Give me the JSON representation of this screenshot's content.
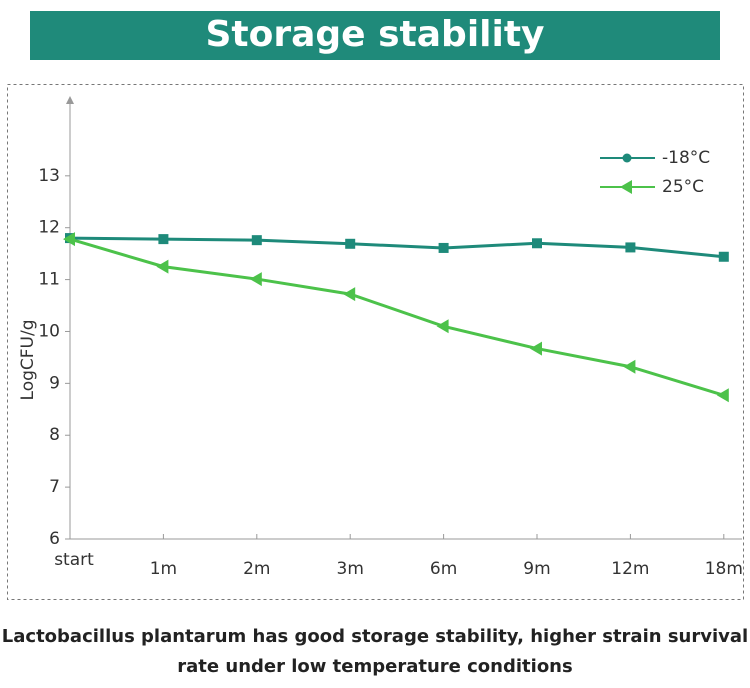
{
  "chart_data": {
    "type": "line",
    "title": "Storage stability",
    "y_label": "LogCFU/g",
    "categories": [
      "start",
      "1m",
      "2m",
      "3m",
      "6m",
      "9m",
      "12m",
      "18m"
    ],
    "series": [
      {
        "name": "-18°C",
        "color": "#1e8a7a",
        "values": [
          11.8,
          11.78,
          11.76,
          11.69,
          11.61,
          11.7,
          11.62,
          11.44
        ]
      },
      {
        "name": "25°C",
        "color": "#4cc24a",
        "values": [
          11.78,
          11.25,
          11.01,
          10.72,
          10.1,
          9.67,
          9.32,
          8.77
        ]
      }
    ],
    "ylim": [
      6,
      14.5
    ],
    "yticks": [
      6,
      7,
      8,
      9,
      10,
      11,
      12,
      13
    ],
    "caption": [
      "Lactobacillus plantarum has good storage stability, higher strain survival",
      "rate under low temperature conditions"
    ]
  }
}
